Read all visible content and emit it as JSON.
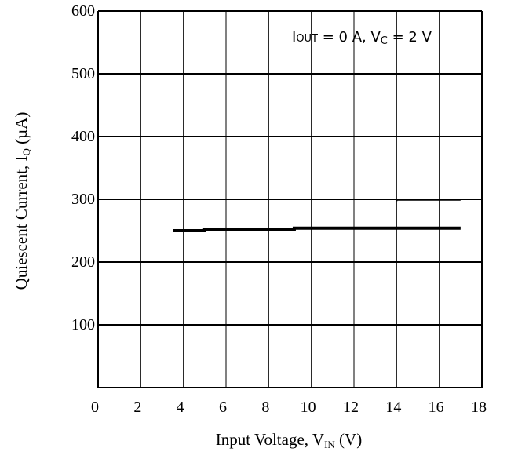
{
  "chart_data": {
    "type": "line",
    "xlabel": {
      "main": "Input Voltage, V",
      "sub": "IN",
      "unit": " (V)"
    },
    "ylabel": {
      "main": "Quiescent Current, I",
      "sub": "Q",
      "unit": " (µA)"
    },
    "xlim": [
      0,
      18
    ],
    "ylim": [
      0,
      600
    ],
    "x_ticks": [
      0,
      2,
      4,
      6,
      8,
      10,
      12,
      14,
      16,
      18
    ],
    "y_ticks": [
      100,
      200,
      300,
      400,
      500,
      600
    ],
    "grid": true,
    "annotation": {
      "i": "I",
      "i_sub": "OUT",
      "mid": " = 0 A, V",
      "v_sub": "C",
      "tail": " = 2 V"
    },
    "series": [
      {
        "x": [
          3.5,
          5.0,
          5.0,
          9.2,
          9.2,
          17.0
        ],
        "y": [
          250,
          250,
          252,
          252,
          254,
          254
        ]
      },
      {
        "x": [
          14.0,
          14.0,
          17.0
        ],
        "y": [
          297,
          299,
          299
        ]
      }
    ]
  }
}
